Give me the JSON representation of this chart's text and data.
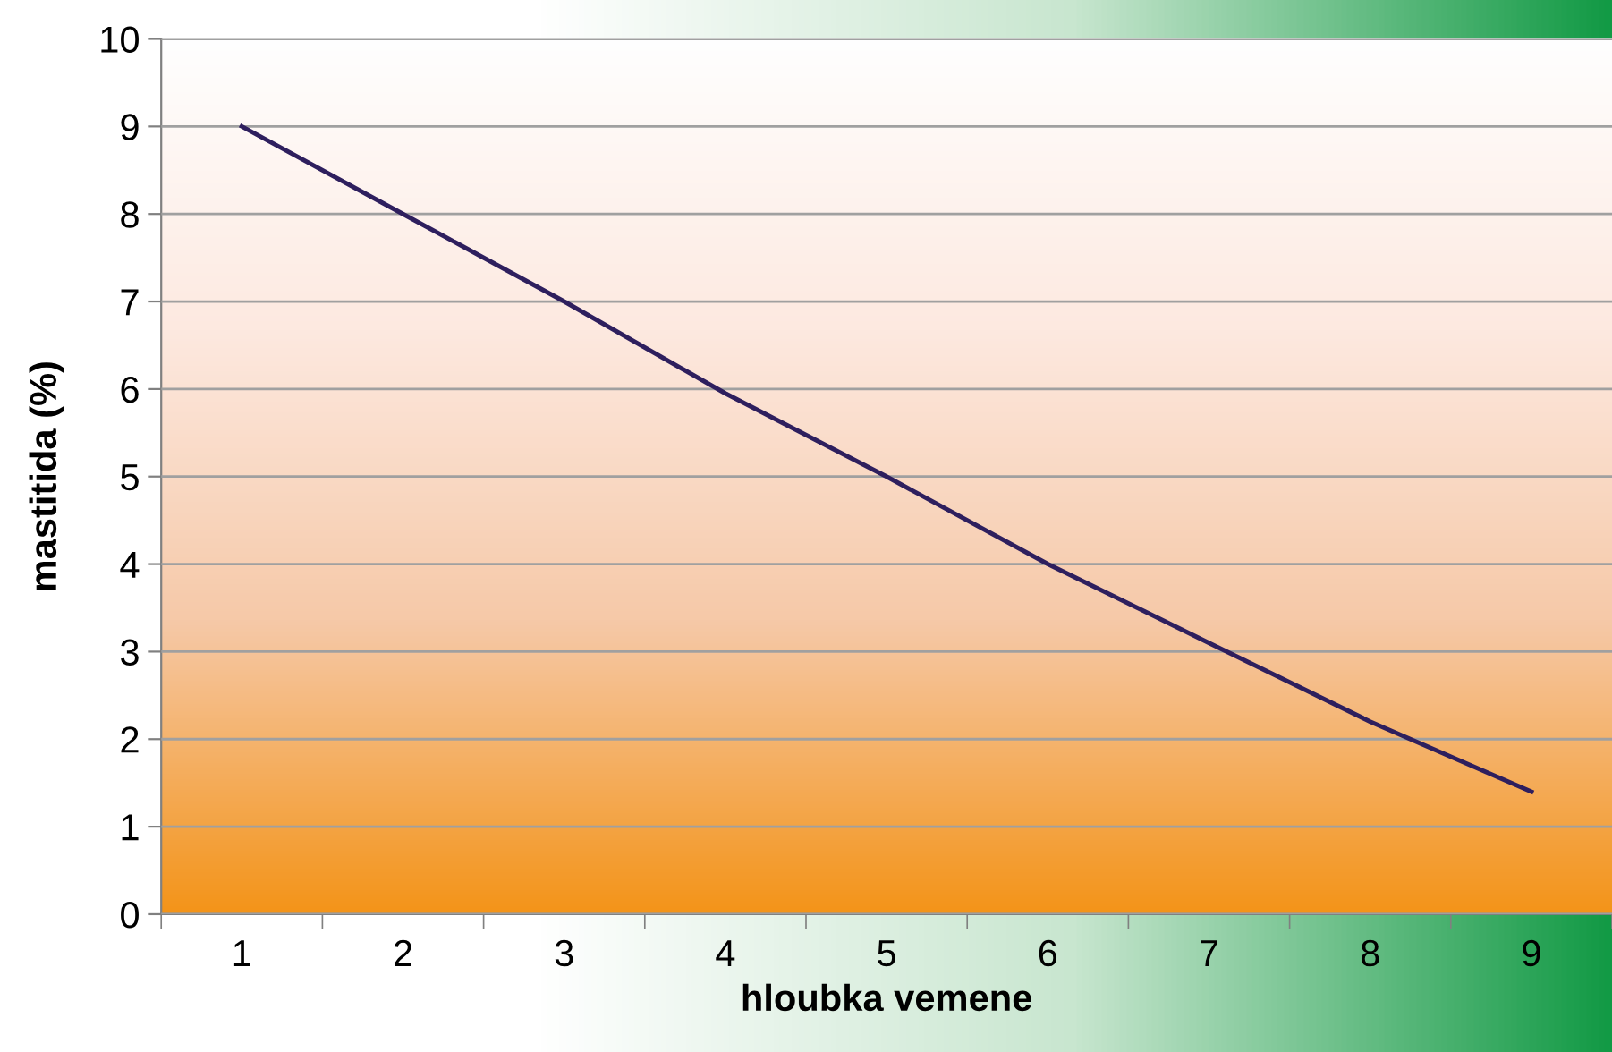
{
  "chart_data": {
    "type": "line",
    "xlabel": "hloubka vemene",
    "ylabel": "mastitida (%)",
    "categories": [
      "1",
      "2",
      "3",
      "4",
      "5",
      "6",
      "7",
      "8",
      "9"
    ],
    "series": [
      {
        "color": "#2e1f5e",
        "values": [
          9.0,
          8.0,
          7.0,
          5.95,
          5.0,
          4.0,
          3.1,
          2.2,
          1.4
        ]
      }
    ],
    "ylim": [
      0,
      10
    ],
    "yticks": [
      0,
      1,
      2,
      3,
      4,
      5,
      6,
      7,
      8,
      9,
      10
    ],
    "grid": "y",
    "marker": "none",
    "line_style": "solid"
  }
}
